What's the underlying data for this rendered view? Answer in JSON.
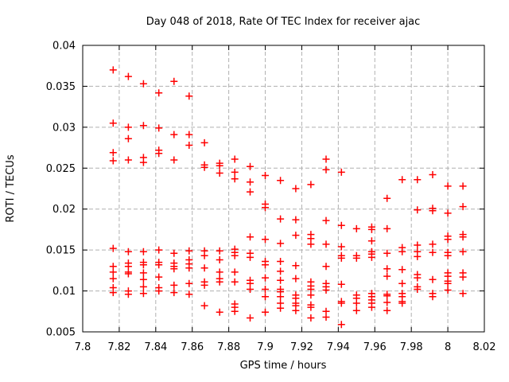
{
  "chart": {
    "title": "Day 048 of 2018, Rate Of TEC Index for receiver ajac",
    "xlabel": "GPS time / hours",
    "ylabel": "ROTI / TECUs"
  },
  "chart_data": {
    "type": "scatter",
    "title": "Day 048 of 2018, Rate Of TEC Index for receiver ajac",
    "xlabel": "GPS time / hours",
    "ylabel": "ROTI / TECUs",
    "xlim": [
      7.8,
      8.02
    ],
    "ylim": [
      0.005,
      0.04
    ],
    "grid": true,
    "legend": false,
    "marker": {
      "shape": "plus",
      "color": "#ff0000",
      "size": 9
    },
    "grid_color": "#b0b0b0",
    "border_color": "#000000",
    "xticks": {
      "values": [
        7.8,
        7.82,
        7.84,
        7.86,
        7.88,
        7.9,
        7.92,
        7.94,
        7.96,
        7.98,
        8.0,
        8.02
      ],
      "labels": [
        "7.8",
        "7.82",
        "7.84",
        "7.86",
        "7.88",
        "7.9",
        "7.92",
        "7.94",
        "7.96",
        "7.98",
        "8",
        "8.02"
      ]
    },
    "yticks": {
      "values": [
        0.005,
        0.01,
        0.015,
        0.02,
        0.025,
        0.03,
        0.035,
        0.04
      ],
      "labels": [
        "0.005",
        "0.01",
        "0.015",
        "0.02",
        "0.025",
        "0.03",
        "0.035",
        "0.04"
      ]
    },
    "series": [
      {
        "name": "ROTI",
        "points": [
          [
            7.8167,
            0.037
          ],
          [
            7.8167,
            0.0305
          ],
          [
            7.8167,
            0.0269
          ],
          [
            7.8167,
            0.0259
          ],
          [
            7.8167,
            0.0152
          ],
          [
            7.8167,
            0.013
          ],
          [
            7.8167,
            0.0123
          ],
          [
            7.8167,
            0.0115
          ],
          [
            7.8167,
            0.0104
          ],
          [
            7.8167,
            0.0098
          ],
          [
            7.825,
            0.0362
          ],
          [
            7.825,
            0.03
          ],
          [
            7.825,
            0.0286
          ],
          [
            7.825,
            0.026
          ],
          [
            7.825,
            0.0148
          ],
          [
            7.825,
            0.0134
          ],
          [
            7.825,
            0.013
          ],
          [
            7.825,
            0.0123
          ],
          [
            7.825,
            0.0121
          ],
          [
            7.825,
            0.01
          ],
          [
            7.825,
            0.0096
          ],
          [
            7.8333,
            0.0353
          ],
          [
            7.8333,
            0.0302
          ],
          [
            7.8333,
            0.0263
          ],
          [
            7.8333,
            0.0257
          ],
          [
            7.8333,
            0.0148
          ],
          [
            7.8333,
            0.0135
          ],
          [
            7.8333,
            0.0132
          ],
          [
            7.8333,
            0.0122
          ],
          [
            7.8333,
            0.0114
          ],
          [
            7.8333,
            0.0105
          ],
          [
            7.8333,
            0.0097
          ],
          [
            7.8417,
            0.0342
          ],
          [
            7.8417,
            0.0299
          ],
          [
            7.8417,
            0.0272
          ],
          [
            7.8417,
            0.0268
          ],
          [
            7.8417,
            0.015
          ],
          [
            7.8417,
            0.0135
          ],
          [
            7.8417,
            0.0132
          ],
          [
            7.8417,
            0.0117
          ],
          [
            7.8417,
            0.0104
          ],
          [
            7.8417,
            0.01
          ],
          [
            7.85,
            0.0356
          ],
          [
            7.85,
            0.0291
          ],
          [
            7.85,
            0.026
          ],
          [
            7.85,
            0.0146
          ],
          [
            7.85,
            0.0134
          ],
          [
            7.85,
            0.013
          ],
          [
            7.85,
            0.0127
          ],
          [
            7.85,
            0.0107
          ],
          [
            7.85,
            0.0098
          ],
          [
            7.8583,
            0.0338
          ],
          [
            7.8583,
            0.0291
          ],
          [
            7.8583,
            0.0278
          ],
          [
            7.8583,
            0.0149
          ],
          [
            7.8583,
            0.0138
          ],
          [
            7.8583,
            0.0133
          ],
          [
            7.8583,
            0.0128
          ],
          [
            7.8583,
            0.0109
          ],
          [
            7.8583,
            0.0096
          ],
          [
            7.8667,
            0.0281
          ],
          [
            7.8667,
            0.0254
          ],
          [
            7.8667,
            0.0251
          ],
          [
            7.8667,
            0.0149
          ],
          [
            7.8667,
            0.0143
          ],
          [
            7.8667,
            0.0128
          ],
          [
            7.8667,
            0.0111
          ],
          [
            7.8667,
            0.0107
          ],
          [
            7.8667,
            0.0082
          ],
          [
            7.875,
            0.0256
          ],
          [
            7.875,
            0.0253
          ],
          [
            7.875,
            0.0244
          ],
          [
            7.875,
            0.0149
          ],
          [
            7.875,
            0.0138
          ],
          [
            7.875,
            0.0123
          ],
          [
            7.875,
            0.0115
          ],
          [
            7.875,
            0.0111
          ],
          [
            7.875,
            0.0074
          ],
          [
            7.8833,
            0.0261
          ],
          [
            7.8833,
            0.0245
          ],
          [
            7.8833,
            0.0237
          ],
          [
            7.8833,
            0.0151
          ],
          [
            7.8833,
            0.0147
          ],
          [
            7.8833,
            0.0143
          ],
          [
            7.8833,
            0.0123
          ],
          [
            7.8833,
            0.0111
          ],
          [
            7.8833,
            0.0084
          ],
          [
            7.8833,
            0.008
          ],
          [
            7.8833,
            0.0075
          ],
          [
            7.8917,
            0.0252
          ],
          [
            7.8917,
            0.0233
          ],
          [
            7.8917,
            0.0221
          ],
          [
            7.8917,
            0.0166
          ],
          [
            7.8917,
            0.0146
          ],
          [
            7.8917,
            0.0141
          ],
          [
            7.8917,
            0.0113
          ],
          [
            7.8917,
            0.0109
          ],
          [
            7.8917,
            0.0102
          ],
          [
            7.8917,
            0.0067
          ],
          [
            7.9,
            0.0241
          ],
          [
            7.9,
            0.0206
          ],
          [
            7.9,
            0.0202
          ],
          [
            7.9,
            0.0163
          ],
          [
            7.9,
            0.0136
          ],
          [
            7.9,
            0.0132
          ],
          [
            7.9,
            0.0116
          ],
          [
            7.9,
            0.0102
          ],
          [
            7.9,
            0.0093
          ],
          [
            7.9,
            0.0074
          ],
          [
            7.9083,
            0.0235
          ],
          [
            7.9083,
            0.0188
          ],
          [
            7.9083,
            0.0158
          ],
          [
            7.9083,
            0.0136
          ],
          [
            7.9083,
            0.0124
          ],
          [
            7.9083,
            0.0113
          ],
          [
            7.9083,
            0.0102
          ],
          [
            7.9083,
            0.0099
          ],
          [
            7.9083,
            0.0093
          ],
          [
            7.9083,
            0.0085
          ],
          [
            7.9083,
            0.0079
          ],
          [
            7.9167,
            0.0225
          ],
          [
            7.9167,
            0.0187
          ],
          [
            7.9167,
            0.0168
          ],
          [
            7.9167,
            0.0131
          ],
          [
            7.9167,
            0.0115
          ],
          [
            7.9167,
            0.0095
          ],
          [
            7.9167,
            0.0091
          ],
          [
            7.9167,
            0.0085
          ],
          [
            7.9167,
            0.0082
          ],
          [
            7.9167,
            0.0076
          ],
          [
            7.925,
            0.023
          ],
          [
            7.925,
            0.0169
          ],
          [
            7.925,
            0.0164
          ],
          [
            7.925,
            0.0157
          ],
          [
            7.925,
            0.0111
          ],
          [
            7.925,
            0.0106
          ],
          [
            7.925,
            0.0102
          ],
          [
            7.925,
            0.0095
          ],
          [
            7.925,
            0.0083
          ],
          [
            7.925,
            0.008
          ],
          [
            7.925,
            0.0067
          ],
          [
            7.9333,
            0.0261
          ],
          [
            7.9333,
            0.0248
          ],
          [
            7.9333,
            0.0186
          ],
          [
            7.9333,
            0.0157
          ],
          [
            7.9333,
            0.013
          ],
          [
            7.9333,
            0.0109
          ],
          [
            7.9333,
            0.0105
          ],
          [
            7.9333,
            0.0101
          ],
          [
            7.9333,
            0.0075
          ],
          [
            7.9333,
            0.0068
          ],
          [
            7.9417,
            0.0245
          ],
          [
            7.9417,
            0.018
          ],
          [
            7.9417,
            0.0154
          ],
          [
            7.9417,
            0.0143
          ],
          [
            7.9417,
            0.014
          ],
          [
            7.9417,
            0.0108
          ],
          [
            7.9417,
            0.0087
          ],
          [
            7.9417,
            0.0085
          ],
          [
            7.9417,
            0.0059
          ],
          [
            7.95,
            0.0176
          ],
          [
            7.95,
            0.0143
          ],
          [
            7.95,
            0.014
          ],
          [
            7.95,
            0.0095
          ],
          [
            7.95,
            0.0091
          ],
          [
            7.95,
            0.0085
          ],
          [
            7.95,
            0.0076
          ],
          [
            7.9583,
            0.0178
          ],
          [
            7.9583,
            0.0175
          ],
          [
            7.9583,
            0.0161
          ],
          [
            7.9583,
            0.0148
          ],
          [
            7.9583,
            0.0145
          ],
          [
            7.9583,
            0.0141
          ],
          [
            7.9583,
            0.0097
          ],
          [
            7.9583,
            0.0093
          ],
          [
            7.9583,
            0.0089
          ],
          [
            7.9583,
            0.0085
          ],
          [
            7.9583,
            0.008
          ],
          [
            7.9667,
            0.0213
          ],
          [
            7.9667,
            0.0176
          ],
          [
            7.9667,
            0.0146
          ],
          [
            7.9667,
            0.0127
          ],
          [
            7.9667,
            0.0118
          ],
          [
            7.9667,
            0.0096
          ],
          [
            7.9667,
            0.0094
          ],
          [
            7.9667,
            0.0086
          ],
          [
            7.9667,
            0.0076
          ],
          [
            7.975,
            0.0236
          ],
          [
            7.975,
            0.0153
          ],
          [
            7.975,
            0.0148
          ],
          [
            7.975,
            0.0126
          ],
          [
            7.975,
            0.0109
          ],
          [
            7.975,
            0.0097
          ],
          [
            7.975,
            0.0093
          ],
          [
            7.975,
            0.0087
          ],
          [
            7.975,
            0.0085
          ],
          [
            7.9833,
            0.0236
          ],
          [
            7.9833,
            0.0199
          ],
          [
            7.9833,
            0.0156
          ],
          [
            7.9833,
            0.0148
          ],
          [
            7.9833,
            0.0142
          ],
          [
            7.9833,
            0.012
          ],
          [
            7.9833,
            0.0116
          ],
          [
            7.9833,
            0.0105
          ],
          [
            7.9833,
            0.0102
          ],
          [
            7.9917,
            0.0242
          ],
          [
            7.9917,
            0.0201
          ],
          [
            7.9917,
            0.0198
          ],
          [
            7.9917,
            0.0157
          ],
          [
            7.9917,
            0.0147
          ],
          [
            7.9917,
            0.0114
          ],
          [
            7.9917,
            0.0097
          ],
          [
            7.9917,
            0.0093
          ],
          [
            8.0,
            0.0228
          ],
          [
            8.0,
            0.0195
          ],
          [
            8.0,
            0.0167
          ],
          [
            8.0,
            0.0163
          ],
          [
            8.0,
            0.0147
          ],
          [
            8.0,
            0.0143
          ],
          [
            8.0,
            0.0122
          ],
          [
            8.0,
            0.0118
          ],
          [
            8.0,
            0.0112
          ],
          [
            8.0,
            0.0109
          ],
          [
            8.0,
            0.0101
          ],
          [
            8.0083,
            0.0228
          ],
          [
            8.0083,
            0.0203
          ],
          [
            8.0083,
            0.0169
          ],
          [
            8.0083,
            0.0166
          ],
          [
            8.0083,
            0.0148
          ],
          [
            8.0083,
            0.0122
          ],
          [
            8.0083,
            0.0117
          ],
          [
            8.0083,
            0.0097
          ]
        ]
      }
    ]
  }
}
